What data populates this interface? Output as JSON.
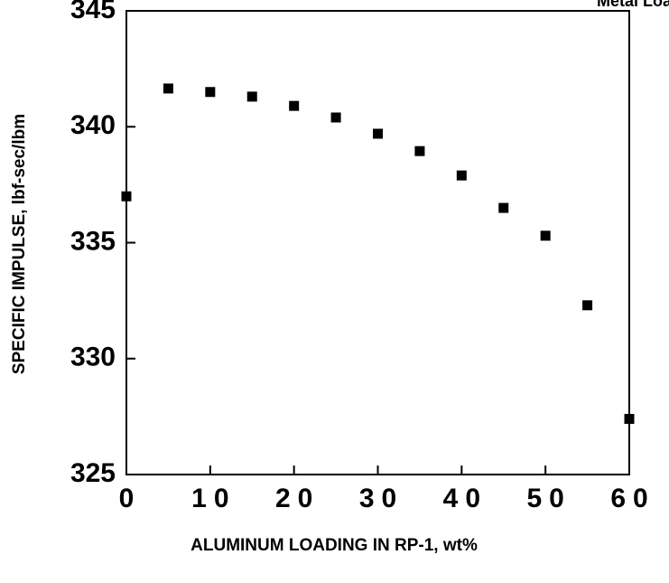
{
  "chart_data": {
    "type": "scatter",
    "annotation": "Metal Load.",
    "xlabel": "ALUMINUM LOADING IN RP-1, wt%",
    "ylabel": "SPECIFIC IMPULSE, lbf-sec/lbm",
    "x": [
      0,
      5,
      10,
      15,
      20,
      25,
      30,
      35,
      40,
      45,
      50,
      55,
      60
    ],
    "values": [
      337.0,
      341.65,
      341.5,
      341.3,
      340.9,
      340.4,
      339.7,
      338.95,
      337.9,
      336.5,
      335.3,
      332.3,
      327.4
    ],
    "color": "#000000",
    "xlim": [
      0,
      60
    ],
    "xticks": [
      0,
      10,
      20,
      30,
      40,
      50,
      60
    ],
    "ylim": [
      325,
      345
    ],
    "yticks": [
      325,
      330,
      335,
      340,
      345
    ]
  }
}
